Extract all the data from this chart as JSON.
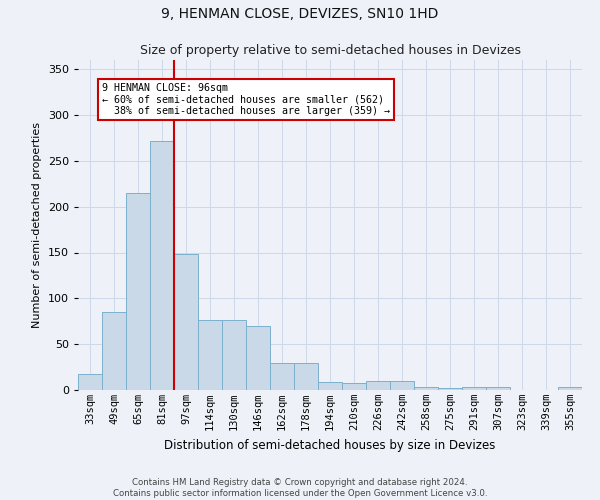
{
  "title": "9, HENMAN CLOSE, DEVIZES, SN10 1HD",
  "subtitle": "Size of property relative to semi-detached houses in Devizes",
  "xlabel": "Distribution of semi-detached houses by size in Devizes",
  "ylabel": "Number of semi-detached properties",
  "categories": [
    "33sqm",
    "49sqm",
    "65sqm",
    "81sqm",
    "97sqm",
    "114sqm",
    "130sqm",
    "146sqm",
    "162sqm",
    "178sqm",
    "194sqm",
    "210sqm",
    "226sqm",
    "242sqm",
    "258sqm",
    "275sqm",
    "291sqm",
    "307sqm",
    "323sqm",
    "339sqm",
    "355sqm"
  ],
  "values": [
    18,
    85,
    215,
    272,
    148,
    76,
    76,
    70,
    29,
    29,
    9,
    8,
    10,
    10,
    3,
    2,
    3,
    3,
    0,
    0,
    3
  ],
  "bar_color": "#c9d9e8",
  "bar_edge_color": "#7ab0cc",
  "smaller_pct": 60,
  "smaller_count": 562,
  "larger_pct": 38,
  "larger_count": 359,
  "property_sqm": 96,
  "ylim": [
    0,
    360
  ],
  "yticks": [
    0,
    50,
    100,
    150,
    200,
    250,
    300,
    350
  ],
  "annotation_box_color": "#ffffff",
  "annotation_box_edge": "#cc0000",
  "vline_color": "#cc0000",
  "grid_color": "#ccd8e8",
  "bg_color": "#eef2f8",
  "title_fontsize": 10,
  "subtitle_fontsize": 9,
  "footnote1": "Contains HM Land Registry data © Crown copyright and database right 2024.",
  "footnote2": "Contains public sector information licensed under the Open Government Licence v3.0."
}
